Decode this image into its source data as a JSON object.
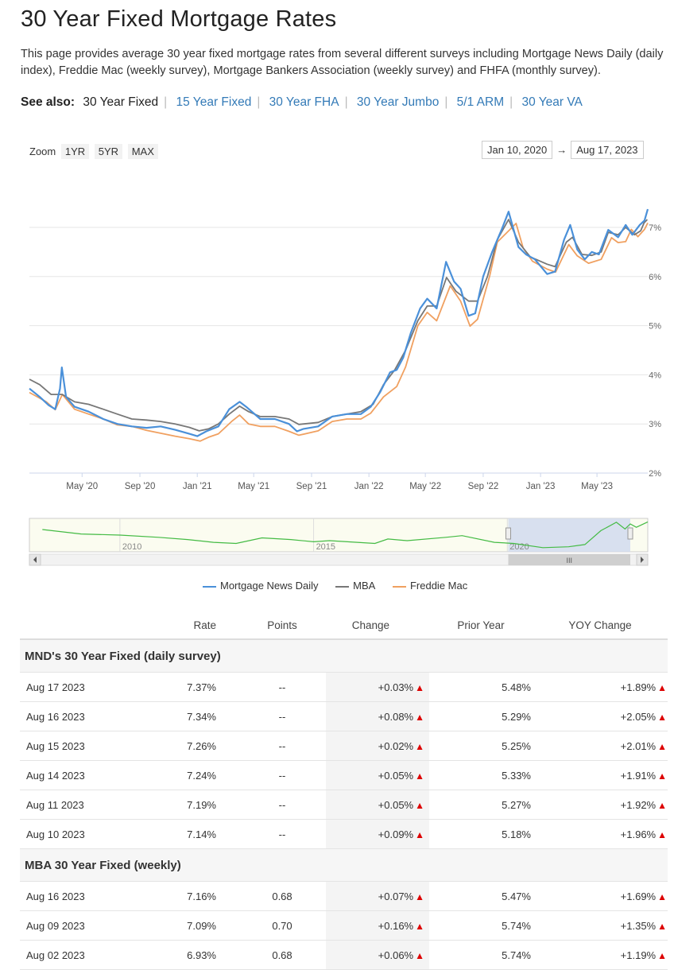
{
  "page": {
    "title": "30 Year Fixed Mortgage Rates",
    "intro": "This page provides average 30 year fixed mortgage rates from several different surveys including Mortgage News Daily (daily index), Freddie Mac (weekly survey), Mortgage Bankers Association (weekly survey) and FHFA (monthly survey)."
  },
  "see_also": {
    "label": "See also:",
    "links": [
      "30 Year Fixed",
      "15 Year Fixed",
      "30 Year FHA",
      "30 Year Jumbo",
      "5/1 ARM",
      "30 Year VA"
    ]
  },
  "zoom": {
    "label": "Zoom",
    "options": [
      "1YR",
      "5YR",
      "MAX"
    ]
  },
  "date_range": {
    "from": "Jan 10, 2020",
    "arrow": "→",
    "to": "Aug 17, 2023"
  },
  "chart_data": {
    "type": "line",
    "x_tick_labels": [
      "May '20",
      "Sep '20",
      "Jan '21",
      "May '21",
      "Sep '21",
      "Jan '22",
      "May '22",
      "Sep '22",
      "Jan '23",
      "May '23"
    ],
    "y_tick_labels": [
      "2%",
      "3%",
      "4%",
      "5%",
      "6%",
      "7%"
    ],
    "ylim": [
      2,
      7.55
    ],
    "xlim": [
      "2020-01-10",
      "2023-08-17"
    ],
    "grid": true,
    "legend_position": "bottom",
    "series": [
      {
        "name": "Mortgage News Daily",
        "color": "#4a90d9",
        "points": [
          [
            "2020-01-10",
            3.72
          ],
          [
            "2020-02-01",
            3.55
          ],
          [
            "2020-02-20",
            3.38
          ],
          [
            "2020-03-05",
            3.3
          ],
          [
            "2020-03-15",
            3.72
          ],
          [
            "2020-03-19",
            4.15
          ],
          [
            "2020-03-28",
            3.55
          ],
          [
            "2020-04-15",
            3.35
          ],
          [
            "2020-05-15",
            3.25
          ],
          [
            "2020-06-15",
            3.1
          ],
          [
            "2020-07-15",
            3.0
          ],
          [
            "2020-08-15",
            2.95
          ],
          [
            "2020-09-15",
            2.92
          ],
          [
            "2020-10-15",
            2.95
          ],
          [
            "2020-11-15",
            2.88
          ],
          [
            "2020-12-15",
            2.8
          ],
          [
            "2021-01-01",
            2.75
          ],
          [
            "2021-01-20",
            2.85
          ],
          [
            "2021-02-15",
            2.95
          ],
          [
            "2021-03-10",
            3.3
          ],
          [
            "2021-04-01",
            3.45
          ],
          [
            "2021-04-15",
            3.35
          ],
          [
            "2021-05-15",
            3.1
          ],
          [
            "2021-06-15",
            3.1
          ],
          [
            "2021-07-15",
            3.0
          ],
          [
            "2021-08-01",
            2.85
          ],
          [
            "2021-08-15",
            2.9
          ],
          [
            "2021-09-15",
            2.95
          ],
          [
            "2021-10-15",
            3.15
          ],
          [
            "2021-11-15",
            3.2
          ],
          [
            "2021-12-15",
            3.2
          ],
          [
            "2022-01-05",
            3.35
          ],
          [
            "2022-01-25",
            3.65
          ],
          [
            "2022-02-15",
            4.05
          ],
          [
            "2022-03-01",
            4.1
          ],
          [
            "2022-03-15",
            4.35
          ],
          [
            "2022-03-31",
            4.85
          ],
          [
            "2022-04-20",
            5.35
          ],
          [
            "2022-05-05",
            5.55
          ],
          [
            "2022-05-25",
            5.35
          ],
          [
            "2022-06-14",
            6.3
          ],
          [
            "2022-07-01",
            5.9
          ],
          [
            "2022-07-15",
            5.75
          ],
          [
            "2022-08-01",
            5.2
          ],
          [
            "2022-08-15",
            5.25
          ],
          [
            "2022-09-01",
            6.0
          ],
          [
            "2022-09-20",
            6.5
          ],
          [
            "2022-10-10",
            6.95
          ],
          [
            "2022-10-25",
            7.32
          ],
          [
            "2022-11-15",
            6.6
          ],
          [
            "2022-12-01",
            6.45
          ],
          [
            "2022-12-20",
            6.35
          ],
          [
            "2023-01-15",
            6.05
          ],
          [
            "2023-02-01",
            6.1
          ],
          [
            "2023-02-20",
            6.75
          ],
          [
            "2023-03-05",
            7.05
          ],
          [
            "2023-03-20",
            6.55
          ],
          [
            "2023-04-05",
            6.35
          ],
          [
            "2023-04-20",
            6.5
          ],
          [
            "2023-05-05",
            6.45
          ],
          [
            "2023-05-25",
            6.95
          ],
          [
            "2023-06-15",
            6.8
          ],
          [
            "2023-07-01",
            7.05
          ],
          [
            "2023-07-15",
            6.85
          ],
          [
            "2023-07-31",
            7.05
          ],
          [
            "2023-08-10",
            7.14
          ],
          [
            "2023-08-17",
            7.37
          ]
        ]
      },
      {
        "name": "MBA",
        "color": "#777777",
        "points": [
          [
            "2020-01-10",
            3.91
          ],
          [
            "2020-02-01",
            3.8
          ],
          [
            "2020-02-25",
            3.6
          ],
          [
            "2020-03-20",
            3.6
          ],
          [
            "2020-04-15",
            3.45
          ],
          [
            "2020-05-15",
            3.4
          ],
          [
            "2020-06-15",
            3.3
          ],
          [
            "2020-07-15",
            3.2
          ],
          [
            "2020-08-15",
            3.1
          ],
          [
            "2020-09-15",
            3.08
          ],
          [
            "2020-10-15",
            3.05
          ],
          [
            "2020-11-15",
            3.0
          ],
          [
            "2020-12-15",
            2.93
          ],
          [
            "2021-01-05",
            2.86
          ],
          [
            "2021-01-25",
            2.9
          ],
          [
            "2021-02-15",
            3.0
          ],
          [
            "2021-03-10",
            3.2
          ],
          [
            "2021-04-01",
            3.36
          ],
          [
            "2021-04-20",
            3.25
          ],
          [
            "2021-05-15",
            3.15
          ],
          [
            "2021-06-15",
            3.15
          ],
          [
            "2021-07-15",
            3.1
          ],
          [
            "2021-08-05",
            2.99
          ],
          [
            "2021-09-15",
            3.03
          ],
          [
            "2021-10-15",
            3.15
          ],
          [
            "2021-11-15",
            3.2
          ],
          [
            "2021-12-15",
            3.25
          ],
          [
            "2022-01-10",
            3.4
          ],
          [
            "2022-02-01",
            3.8
          ],
          [
            "2022-02-25",
            4.1
          ],
          [
            "2022-03-20",
            4.5
          ],
          [
            "2022-04-15",
            5.1
          ],
          [
            "2022-05-05",
            5.4
          ],
          [
            "2022-05-25",
            5.4
          ],
          [
            "2022-06-15",
            5.98
          ],
          [
            "2022-07-05",
            5.7
          ],
          [
            "2022-08-01",
            5.5
          ],
          [
            "2022-08-20",
            5.5
          ],
          [
            "2022-09-10",
            6.0
          ],
          [
            "2022-10-01",
            6.75
          ],
          [
            "2022-10-25",
            7.16
          ],
          [
            "2022-11-15",
            6.7
          ],
          [
            "2022-12-10",
            6.4
          ],
          [
            "2023-01-15",
            6.25
          ],
          [
            "2023-02-01",
            6.2
          ],
          [
            "2023-02-25",
            6.7
          ],
          [
            "2023-03-10",
            6.8
          ],
          [
            "2023-03-30",
            6.45
          ],
          [
            "2023-04-20",
            6.43
          ],
          [
            "2023-05-10",
            6.5
          ],
          [
            "2023-05-25",
            6.9
          ],
          [
            "2023-06-15",
            6.85
          ],
          [
            "2023-07-01",
            7.0
          ],
          [
            "2023-07-20",
            6.85
          ],
          [
            "2023-08-02",
            6.93
          ],
          [
            "2023-08-09",
            7.09
          ],
          [
            "2023-08-16",
            7.16
          ]
        ]
      },
      {
        "name": "Freddie Mac",
        "color": "#f0a060",
        "points": [
          [
            "2020-01-10",
            3.64
          ],
          [
            "2020-02-15",
            3.45
          ],
          [
            "2020-03-05",
            3.29
          ],
          [
            "2020-03-20",
            3.6
          ],
          [
            "2020-04-15",
            3.3
          ],
          [
            "2020-05-15",
            3.2
          ],
          [
            "2020-06-15",
            3.1
          ],
          [
            "2020-07-15",
            2.98
          ],
          [
            "2020-08-15",
            2.95
          ],
          [
            "2020-09-15",
            2.87
          ],
          [
            "2020-10-15",
            2.81
          ],
          [
            "2020-11-15",
            2.75
          ],
          [
            "2020-12-15",
            2.7
          ],
          [
            "2021-01-07",
            2.65
          ],
          [
            "2021-01-25",
            2.73
          ],
          [
            "2021-02-15",
            2.8
          ],
          [
            "2021-03-15",
            3.05
          ],
          [
            "2021-04-01",
            3.18
          ],
          [
            "2021-04-20",
            3.0
          ],
          [
            "2021-05-15",
            2.95
          ],
          [
            "2021-06-15",
            2.95
          ],
          [
            "2021-07-15",
            2.85
          ],
          [
            "2021-08-05",
            2.77
          ],
          [
            "2021-09-15",
            2.86
          ],
          [
            "2021-10-15",
            3.05
          ],
          [
            "2021-11-15",
            3.1
          ],
          [
            "2021-12-15",
            3.1
          ],
          [
            "2022-01-05",
            3.22
          ],
          [
            "2022-02-01",
            3.55
          ],
          [
            "2022-03-01",
            3.76
          ],
          [
            "2022-03-20",
            4.16
          ],
          [
            "2022-04-15",
            5.0
          ],
          [
            "2022-05-05",
            5.27
          ],
          [
            "2022-05-25",
            5.1
          ],
          [
            "2022-06-23",
            5.81
          ],
          [
            "2022-07-15",
            5.5
          ],
          [
            "2022-08-04",
            4.99
          ],
          [
            "2022-08-20",
            5.13
          ],
          [
            "2022-09-15",
            6.02
          ],
          [
            "2022-10-01",
            6.7
          ],
          [
            "2022-11-10",
            7.08
          ],
          [
            "2022-11-25",
            6.58
          ],
          [
            "2022-12-15",
            6.31
          ],
          [
            "2023-01-15",
            6.15
          ],
          [
            "2023-02-02",
            6.09
          ],
          [
            "2023-03-02",
            6.65
          ],
          [
            "2023-03-20",
            6.42
          ],
          [
            "2023-04-13",
            6.27
          ],
          [
            "2023-05-10",
            6.35
          ],
          [
            "2023-06-01",
            6.79
          ],
          [
            "2023-06-15",
            6.69
          ],
          [
            "2023-07-01",
            6.71
          ],
          [
            "2023-07-13",
            6.96
          ],
          [
            "2023-07-27",
            6.81
          ],
          [
            "2023-08-10",
            6.96
          ],
          [
            "2023-08-17",
            7.09
          ]
        ]
      }
    ],
    "navigator": {
      "tick_labels": [
        "2010",
        "2015",
        "2020"
      ],
      "series_color": "#44bb44",
      "points": [
        [
          "2008-01-01",
          6.0
        ],
        [
          "2009-01-01",
          5.2
        ],
        [
          "2010-01-01",
          5.0
        ],
        [
          "2011-01-01",
          4.6
        ],
        [
          "2011-10-01",
          4.2
        ],
        [
          "2012-06-01",
          3.7
        ],
        [
          "2013-01-01",
          3.5
        ],
        [
          "2013-09-01",
          4.5
        ],
        [
          "2014-06-01",
          4.2
        ],
        [
          "2015-01-01",
          3.8
        ],
        [
          "2015-06-01",
          4.0
        ],
        [
          "2016-08-01",
          3.5
        ],
        [
          "2016-12-01",
          4.3
        ],
        [
          "2017-06-01",
          4.0
        ],
        [
          "2018-06-01",
          4.6
        ],
        [
          "2018-11-01",
          4.9
        ],
        [
          "2019-09-01",
          3.7
        ],
        [
          "2020-03-01",
          3.5
        ],
        [
          "2020-12-01",
          2.75
        ],
        [
          "2021-08-01",
          2.9
        ],
        [
          "2022-01-01",
          3.3
        ],
        [
          "2022-06-01",
          5.8
        ],
        [
          "2022-10-25",
          7.3
        ],
        [
          "2023-01-15",
          6.1
        ],
        [
          "2023-03-05",
          7.0
        ],
        [
          "2023-05-01",
          6.4
        ],
        [
          "2023-08-17",
          7.37
        ]
      ],
      "scroll_label": "III"
    }
  },
  "table": {
    "headers": [
      "",
      "Rate",
      "Points",
      "Change",
      "Prior Year",
      "YOY Change"
    ],
    "sections": [
      {
        "title": "MND's 30 Year Fixed (daily survey)",
        "rows": [
          {
            "date": "Aug 17 2023",
            "rate": "7.37%",
            "points": "--",
            "change": "+0.03%",
            "prior": "5.48%",
            "yoy": "+1.89%"
          },
          {
            "date": "Aug 16 2023",
            "rate": "7.34%",
            "points": "--",
            "change": "+0.08%",
            "prior": "5.29%",
            "yoy": "+2.05%"
          },
          {
            "date": "Aug 15 2023",
            "rate": "7.26%",
            "points": "--",
            "change": "+0.02%",
            "prior": "5.25%",
            "yoy": "+2.01%"
          },
          {
            "date": "Aug 14 2023",
            "rate": "7.24%",
            "points": "--",
            "change": "+0.05%",
            "prior": "5.33%",
            "yoy": "+1.91%"
          },
          {
            "date": "Aug 11 2023",
            "rate": "7.19%",
            "points": "--",
            "change": "+0.05%",
            "prior": "5.27%",
            "yoy": "+1.92%"
          },
          {
            "date": "Aug 10 2023",
            "rate": "7.14%",
            "points": "--",
            "change": "+0.09%",
            "prior": "5.18%",
            "yoy": "+1.96%"
          }
        ]
      },
      {
        "title": "MBA 30 Year Fixed (weekly)",
        "rows": [
          {
            "date": "Aug 16 2023",
            "rate": "7.16%",
            "points": "0.68",
            "change": "+0.07%",
            "prior": "5.47%",
            "yoy": "+1.69%"
          },
          {
            "date": "Aug 09 2023",
            "rate": "7.09%",
            "points": "0.70",
            "change": "+0.16%",
            "prior": "5.74%",
            "yoy": "+1.35%"
          },
          {
            "date": "Aug 02 2023",
            "rate": "6.93%",
            "points": "0.68",
            "change": "+0.06%",
            "prior": "5.74%",
            "yoy": "+1.19%"
          }
        ]
      }
    ],
    "arrow": "🡅",
    "up_color": "#dd0000"
  }
}
